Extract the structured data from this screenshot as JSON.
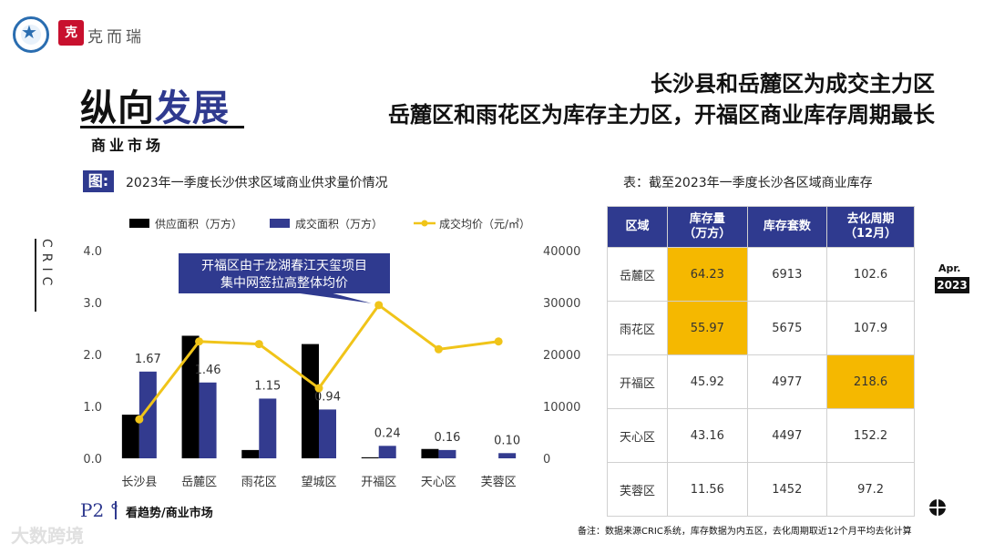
{
  "header": {
    "brand_seal": "克",
    "brand_name": "克而瑞",
    "title_part1": "纵向",
    "title_part2": "发展",
    "subtitle": "商业市场",
    "headline_line1": "长沙县和岳麓区为成交主力区",
    "headline_line2": "岳麓区和雨花区为库存主力区，开福区商业库存周期最长"
  },
  "side_label": "CRIC",
  "chart_section": {
    "tag": "图:",
    "caption": "2023年一季度长沙供求区域商业供求量价情况"
  },
  "chart_data": {
    "type": "bar",
    "title": "",
    "categories": [
      "长沙县",
      "岳麓区",
      "雨花区",
      "望城区",
      "开福区",
      "天心区",
      "芙蓉区"
    ],
    "series": [
      {
        "name": "供应面积（万方）",
        "type": "bar",
        "axis": "left",
        "color": "#000000",
        "values": [
          0.84,
          2.36,
          0.16,
          2.2,
          0.02,
          0.18,
          0.0
        ]
      },
      {
        "name": "成交面积（万方）",
        "type": "bar",
        "axis": "left",
        "color": "#333b8f",
        "values": [
          1.67,
          1.46,
          1.15,
          0.94,
          0.24,
          0.16,
          0.1
        ]
      },
      {
        "name": "成交均价（元/㎡）",
        "type": "line",
        "axis": "right",
        "color": "#f0c419",
        "values": [
          7500,
          22500,
          22000,
          13500,
          29500,
          21000,
          22500
        ]
      }
    ],
    "bar_labels": [
      "1.67",
      "1.46",
      "1.15",
      "0.94",
      "0.24",
      "0.16",
      "0.10"
    ],
    "y_left": {
      "ylim": [
        0,
        4.0
      ],
      "ticks": [
        "0.0",
        "1.0",
        "2.0",
        "3.0",
        "4.0"
      ]
    },
    "y_right": {
      "ylim": [
        0,
        40000
      ],
      "ticks": [
        "0",
        "10000",
        "20000",
        "30000",
        "40000"
      ]
    },
    "annotation": {
      "line1": "开福区由于龙湖春江天玺项目",
      "line2": "集中网签拉高整体均价",
      "target_category": "开福区"
    },
    "legend_placement": "top",
    "grid": false
  },
  "table_section": {
    "caption": "表：截至2023年一季度长沙各区域商业库存",
    "headers": [
      [
        "区域"
      ],
      [
        "库存量",
        "（万方）"
      ],
      [
        "库存套数"
      ],
      [
        "去化周期",
        "（12月）"
      ]
    ],
    "rows": [
      {
        "cells": [
          "岳麓区",
          "64.23",
          "6913",
          "102.6"
        ],
        "highlight": [
          false,
          true,
          false,
          false
        ]
      },
      {
        "cells": [
          "雨花区",
          "55.97",
          "5675",
          "107.9"
        ],
        "highlight": [
          false,
          true,
          false,
          false
        ]
      },
      {
        "cells": [
          "开福区",
          "45.92",
          "4977",
          "218.6"
        ],
        "highlight": [
          false,
          false,
          false,
          true
        ]
      },
      {
        "cells": [
          "天心区",
          "43.16",
          "4497",
          "152.2"
        ],
        "highlight": [
          false,
          false,
          false,
          false
        ]
      },
      {
        "cells": [
          "芙蓉区",
          "11.56",
          "1452",
          "97.2"
        ],
        "highlight": [
          false,
          false,
          false,
          false
        ]
      }
    ]
  },
  "date_badge": {
    "month": "Apr.",
    "year": "2023"
  },
  "footer": {
    "page": "P2 °",
    "section": "看趋势/商业市场",
    "note": "备注：数据来源CRIC系统，库存数据为内五区，去化周期取近12个月平均去化计算"
  },
  "watermark": "大数跨境",
  "colors": {
    "accent": "#2f3a8f",
    "highlight": "#f5b800",
    "line": "#f0c419"
  }
}
